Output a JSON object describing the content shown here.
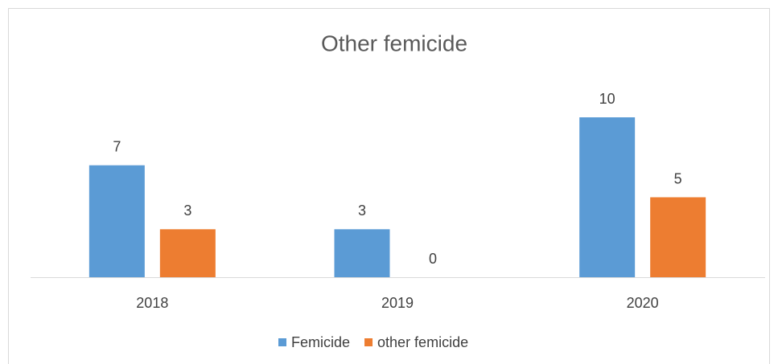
{
  "chart_data": {
    "type": "bar",
    "title": "Other femicide",
    "categories": [
      "2018",
      "2019",
      "2020"
    ],
    "series": [
      {
        "name": "Femicide",
        "color": "#5b9bd5",
        "values": [
          7,
          3,
          10
        ]
      },
      {
        "name": "other femicide",
        "color": "#ed7d31",
        "values": [
          3,
          0,
          5
        ]
      }
    ],
    "ylim": [
      0,
      12
    ],
    "legend": "bottom"
  }
}
